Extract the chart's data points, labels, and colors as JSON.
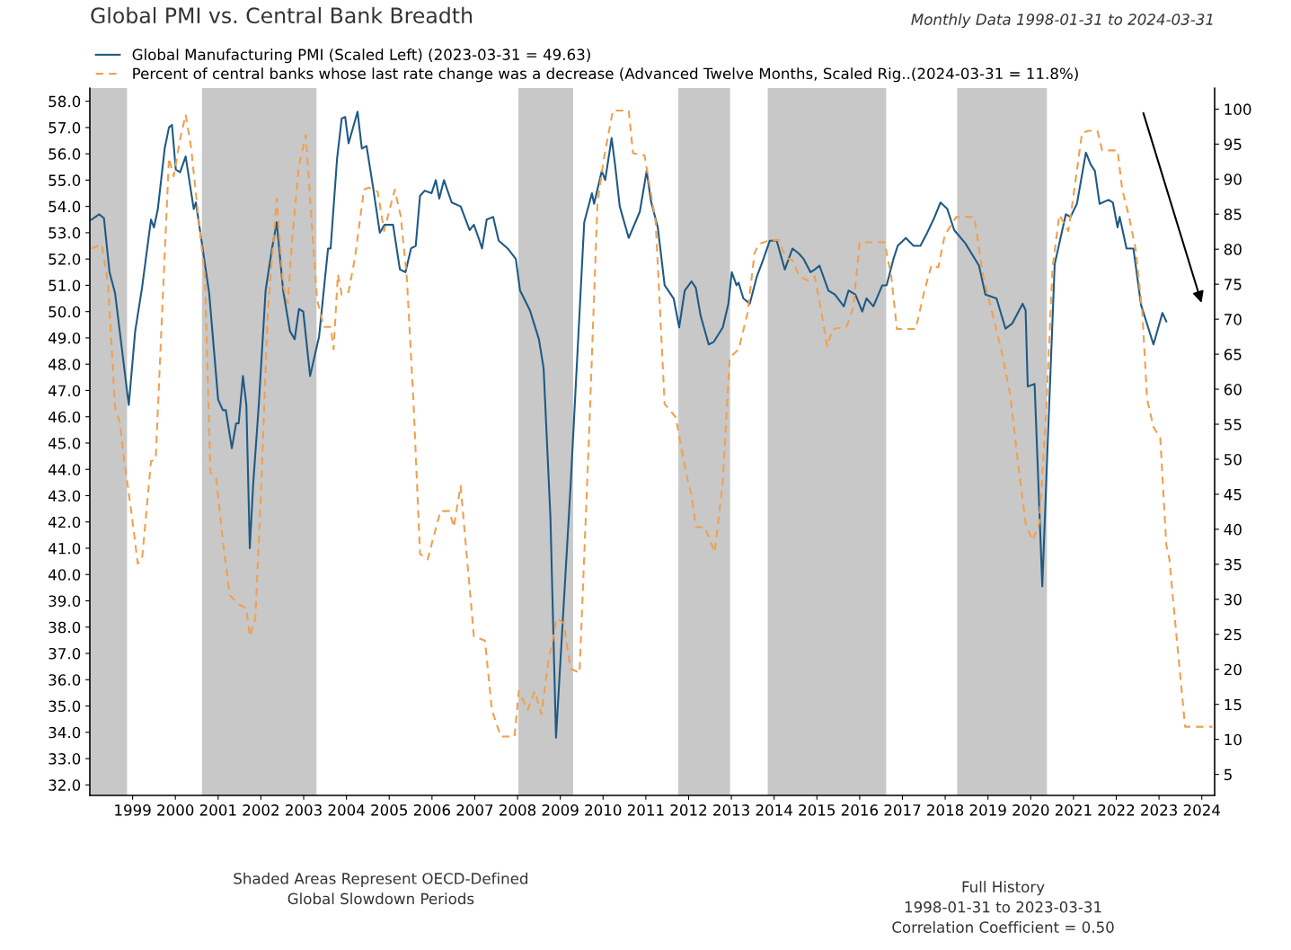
{
  "chart_data": {
    "type": "line",
    "title": "Global PMI vs. Central Bank Breadth",
    "subtitle": "Monthly Data 1998-01-31 to 2024-03-31",
    "annotations": [
      "Shaded Areas Represent OECD-Defined\nGlobal Slowdown Periods",
      "Full History\n1998-01-31 to 2023-03-31\nCorrelation Coefficient = 0.50"
    ],
    "xlim": [
      1998,
      2024.3
    ],
    "xticks": [
      1999,
      2000,
      2001,
      2002,
      2003,
      2004,
      2005,
      2006,
      2007,
      2008,
      2009,
      2010,
      2011,
      2012,
      2013,
      2014,
      2015,
      2016,
      2017,
      2018,
      2019,
      2020,
      2021,
      2022,
      2023,
      2024
    ],
    "ylim": [
      31.6,
      58.5
    ],
    "yticks": [
      {
        "value": 32,
        "label": "32.0"
      },
      {
        "value": 33,
        "label": "33.0"
      },
      {
        "value": 34,
        "label": "34.0"
      },
      {
        "value": 35,
        "label": "35.0"
      },
      {
        "value": 36,
        "label": "36.0"
      },
      {
        "value": 37,
        "label": "37.0"
      },
      {
        "value": 38,
        "label": "38.0"
      },
      {
        "value": 39,
        "label": "39.0"
      },
      {
        "value": 40,
        "label": "40.0"
      },
      {
        "value": 41,
        "label": "41.0"
      },
      {
        "value": 42,
        "label": "42.0"
      },
      {
        "value": 43,
        "label": "43.0"
      },
      {
        "value": 44,
        "label": "44.0"
      },
      {
        "value": 45,
        "label": "45.0"
      },
      {
        "value": 46,
        "label": "46.0"
      },
      {
        "value": 47,
        "label": "47.0"
      },
      {
        "value": 48,
        "label": "48.0"
      },
      {
        "value": 49,
        "label": "49.0"
      },
      {
        "value": 50,
        "label": "50.0"
      },
      {
        "value": 51,
        "label": "51.0"
      },
      {
        "value": 52,
        "label": "52.0"
      },
      {
        "value": 53,
        "label": "53.0"
      },
      {
        "value": 54,
        "label": "54.0"
      },
      {
        "value": 55,
        "label": "55.0"
      },
      {
        "value": 56,
        "label": "56.0"
      },
      {
        "value": 57,
        "label": "57.0"
      },
      {
        "value": 58,
        "label": "58.0"
      }
    ],
    "y2lim": [
      2,
      103
    ],
    "y2ticks": [
      5,
      10,
      15,
      20,
      25,
      30,
      35,
      40,
      45,
      50,
      55,
      60,
      65,
      70,
      75,
      80,
      85,
      90,
      95,
      100
    ],
    "grid": false,
    "legend": "top left",
    "bands": [
      {
        "axis": "x",
        "from": 1998.0,
        "to": 1998.87,
        "color": "#c8c8c8"
      },
      {
        "axis": "x",
        "from": 2000.62,
        "to": 2003.3,
        "color": "#c8c8c8"
      },
      {
        "axis": "x",
        "from": 2008.02,
        "to": 2009.3,
        "color": "#c8c8c8"
      },
      {
        "axis": "x",
        "from": 2011.76,
        "to": 2012.97,
        "color": "#c8c8c8"
      },
      {
        "axis": "x",
        "from": 2013.85,
        "to": 2016.62,
        "color": "#c8c8c8"
      },
      {
        "axis": "x",
        "from": 2018.28,
        "to": 2020.38,
        "color": "#c8c8c8"
      }
    ],
    "series": [
      {
        "name": "Global Manufacturing PMI (Scaled Left) (2023-03-31 = 49.63)",
        "color": "#1f5a85",
        "axis": "y",
        "line_style": "solid",
        "x": [
          1998.04,
          1998.22,
          1998.33,
          1998.46,
          1998.59,
          1998.91,
          1999.06,
          1999.22,
          1999.43,
          1999.5,
          1999.59,
          1999.75,
          1999.85,
          1999.92,
          2000.01,
          2000.11,
          2000.24,
          2000.43,
          2000.48,
          2000.79,
          2001.0,
          2001.11,
          2001.18,
          2001.32,
          2001.42,
          2001.48,
          2001.58,
          2001.66,
          2001.74,
          2001.82,
          2001.95,
          2002.11,
          2002.26,
          2002.37,
          2002.52,
          2002.68,
          2002.79,
          2002.89,
          2002.99,
          2003.15,
          2003.36,
          2003.57,
          2003.63,
          2003.78,
          2003.89,
          2003.97,
          2004.05,
          2004.26,
          2004.36,
          2004.47,
          2004.62,
          2004.78,
          2004.89,
          2005.09,
          2005.25,
          2005.38,
          2005.51,
          2005.62,
          2005.72,
          2005.83,
          2005.99,
          2006.09,
          2006.17,
          2006.28,
          2006.46,
          2006.67,
          2006.88,
          2006.98,
          2007.09,
          2007.17,
          2007.28,
          2007.43,
          2007.56,
          2007.77,
          2007.96,
          2008.06,
          2008.29,
          2008.5,
          2008.61,
          2008.77,
          2008.9,
          2009.24,
          2009.56,
          2009.74,
          2009.79,
          2009.97,
          2010.05,
          2010.2,
          2010.28,
          2010.39,
          2010.6,
          2010.86,
          2011.02,
          2011.12,
          2011.28,
          2011.44,
          2011.65,
          2011.78,
          2011.91,
          2012.07,
          2012.17,
          2012.28,
          2012.47,
          2012.59,
          2012.8,
          2012.93,
          2013.01,
          2013.12,
          2013.17,
          2013.28,
          2013.43,
          2013.59,
          2013.75,
          2013.9,
          2014.06,
          2014.25,
          2014.43,
          2014.58,
          2014.69,
          2014.85,
          2014.95,
          2015.06,
          2015.27,
          2015.42,
          2015.63,
          2015.74,
          2015.9,
          2016.06,
          2016.16,
          2016.32,
          2016.53,
          2016.63,
          2016.79,
          2016.89,
          2017.08,
          2017.26,
          2017.42,
          2017.58,
          2017.74,
          2017.89,
          2018.05,
          2018.21,
          2018.47,
          2018.79,
          2018.94,
          2019.2,
          2019.41,
          2019.57,
          2019.73,
          2019.81,
          2019.88,
          2019.93,
          2020.09,
          2020.27,
          2020.41,
          2020.56,
          2020.82,
          2020.93,
          2021.08,
          2021.29,
          2021.4,
          2021.5,
          2021.61,
          2021.82,
          2021.92,
          2022.03,
          2022.08,
          2022.24,
          2022.4,
          2022.58,
          2022.87,
          2023.08,
          2023.17
        ],
        "values": [
          53.5,
          53.7,
          53.55,
          51.5,
          50.7,
          46.45,
          49.25,
          50.9,
          53.5,
          53.2,
          53.9,
          56.2,
          57.0,
          57.1,
          55.4,
          55.3,
          55.9,
          53.9,
          54.15,
          50.7,
          46.65,
          46.25,
          46.25,
          44.8,
          45.75,
          45.75,
          47.55,
          46.45,
          41.0,
          43.45,
          46.45,
          50.8,
          52.4,
          53.4,
          50.8,
          49.25,
          48.95,
          50.1,
          50.0,
          47.55,
          49.05,
          52.4,
          52.4,
          55.8,
          57.35,
          57.4,
          56.4,
          57.6,
          56.2,
          56.3,
          54.75,
          53.0,
          53.3,
          53.3,
          51.6,
          51.5,
          52.4,
          52.5,
          54.4,
          54.6,
          54.5,
          55.0,
          54.3,
          55.0,
          54.15,
          54.0,
          53.1,
          53.3,
          52.8,
          52.4,
          53.5,
          53.6,
          52.7,
          52.4,
          52.0,
          50.8,
          50.05,
          48.95,
          47.85,
          42.15,
          33.8,
          43.35,
          53.4,
          54.5,
          54.1,
          55.35,
          55.0,
          56.6,
          55.6,
          54.0,
          52.8,
          53.8,
          55.35,
          54.2,
          53.2,
          51.0,
          50.5,
          49.4,
          50.8,
          51.15,
          50.9,
          49.85,
          48.75,
          48.85,
          49.4,
          50.3,
          51.5,
          51.0,
          51.1,
          50.5,
          50.3,
          51.3,
          52.0,
          52.7,
          52.7,
          51.6,
          52.4,
          52.2,
          52.0,
          51.5,
          51.6,
          51.75,
          50.8,
          50.65,
          50.2,
          50.8,
          50.65,
          50.0,
          50.5,
          50.2,
          51.0,
          51.0,
          52.0,
          52.5,
          52.8,
          52.5,
          52.5,
          53.0,
          53.55,
          54.15,
          53.9,
          53.1,
          52.6,
          51.75,
          50.65,
          50.5,
          49.35,
          49.55,
          50.05,
          50.3,
          50.05,
          47.15,
          47.25,
          39.55,
          45.55,
          51.8,
          53.7,
          53.6,
          54.1,
          56.05,
          55.6,
          55.35,
          54.1,
          54.25,
          54.15,
          53.2,
          53.6,
          52.4,
          52.4,
          50.25,
          48.75,
          49.95,
          49.63
        ]
      },
      {
        "name": "Percent of central banks whose last rate change was a decrease (Advanced Twelve Months, Scaled Rig..(2024-03-31 = 11.8%)",
        "color": "#f0a04e",
        "axis": "y2",
        "line_style": "dashed",
        "x": [
          1998.04,
          1998.28,
          1998.43,
          1998.59,
          1998.7,
          1998.8,
          1998.96,
          1999.12,
          1999.22,
          1999.43,
          1999.54,
          1999.69,
          1999.85,
          1999.96,
          2000.11,
          2000.24,
          2000.37,
          2000.48,
          2000.69,
          2000.82,
          2000.95,
          2001.11,
          2001.27,
          2001.48,
          2001.66,
          2001.74,
          2001.87,
          2002.0,
          2002.16,
          2002.37,
          2002.52,
          2002.63,
          2002.73,
          2002.89,
          2003.05,
          2003.15,
          2003.31,
          2003.47,
          2003.63,
          2003.7,
          2003.8,
          2003.89,
          2004.05,
          2004.2,
          2004.41,
          2004.52,
          2004.73,
          2004.88,
          2004.99,
          2005.13,
          2005.27,
          2005.41,
          2005.57,
          2005.72,
          2005.9,
          2006.04,
          2006.2,
          2006.41,
          2006.51,
          2006.67,
          2006.83,
          2006.98,
          2007.24,
          2007.4,
          2007.61,
          2007.93,
          2008.03,
          2008.24,
          2008.4,
          2008.56,
          2008.71,
          2008.92,
          2009.08,
          2009.24,
          2009.45,
          2009.66,
          2009.87,
          2010.02,
          2010.23,
          2010.6,
          2010.7,
          2010.97,
          2011.23,
          2011.44,
          2011.7,
          2011.96,
          2012.07,
          2012.17,
          2012.38,
          2012.61,
          2012.8,
          2012.96,
          2013.17,
          2013.38,
          2013.54,
          2013.64,
          2013.9,
          2014.11,
          2014.27,
          2014.43,
          2014.59,
          2014.8,
          2014.95,
          2015.11,
          2015.24,
          2015.37,
          2015.69,
          2015.85,
          2016.0,
          2016.58,
          2016.74,
          2016.87,
          2017.31,
          2017.52,
          2017.68,
          2017.84,
          2017.99,
          2018.26,
          2018.68,
          2018.89,
          2019.1,
          2019.31,
          2019.52,
          2019.73,
          2019.88,
          2020.04,
          2020.2,
          2020.36,
          2020.51,
          2020.67,
          2020.88,
          2020.99,
          2021.2,
          2021.35,
          2021.56,
          2021.67,
          2022.03,
          2022.14,
          2022.3,
          2022.45,
          2022.61,
          2022.72,
          2022.87,
          2023.03,
          2023.17,
          2023.24,
          2023.4,
          2023.61,
          2024.25
        ],
        "values": [
          80.1,
          80.7,
          74.8,
          57.3,
          55.3,
          50.0,
          43.0,
          35.1,
          35.7,
          49.7,
          50.0,
          70.9,
          93.0,
          90.4,
          95.7,
          99.2,
          94.4,
          87.9,
          76.1,
          48.1,
          47.5,
          38.4,
          30.6,
          29.3,
          28.7,
          24.7,
          27.3,
          44.9,
          70.9,
          87.2,
          74.8,
          72.3,
          81.3,
          92.0,
          96.3,
          87.2,
          72.9,
          68.9,
          68.9,
          65.7,
          76.4,
          73.5,
          73.9,
          78.8,
          88.5,
          88.8,
          88.2,
          82.6,
          85.2,
          88.5,
          84.7,
          76.1,
          57.9,
          36.5,
          35.7,
          39.0,
          42.6,
          42.6,
          40.3,
          46.2,
          35.1,
          24.7,
          24.1,
          14.2,
          10.4,
          10.4,
          16.9,
          14.2,
          16.9,
          13.6,
          20.7,
          27.3,
          26.6,
          20.1,
          19.5,
          51.4,
          86.6,
          93.0,
          99.8,
          99.8,
          93.7,
          93.4,
          83.9,
          57.9,
          56.0,
          47.5,
          44.9,
          40.3,
          40.3,
          36.7,
          46.8,
          64.5,
          65.7,
          70.9,
          79.4,
          80.7,
          81.3,
          81.3,
          78.8,
          78.4,
          76.1,
          75.5,
          76.1,
          70.9,
          66.1,
          68.6,
          68.9,
          71.6,
          81.0,
          81.0,
          76.1,
          68.6,
          68.6,
          74.2,
          77.7,
          77.4,
          82.0,
          84.6,
          84.6,
          76.1,
          70.9,
          65.7,
          59.2,
          48.1,
          40.9,
          38.4,
          40.9,
          56.7,
          77.4,
          84.9,
          82.6,
          87.2,
          96.6,
          96.9,
          96.9,
          94.1,
          94.1,
          88.5,
          84.6,
          80.1,
          70.9,
          58.6,
          54.6,
          53.0,
          37.7,
          35.8,
          25.3,
          11.8,
          11.8
        ]
      }
    ]
  }
}
